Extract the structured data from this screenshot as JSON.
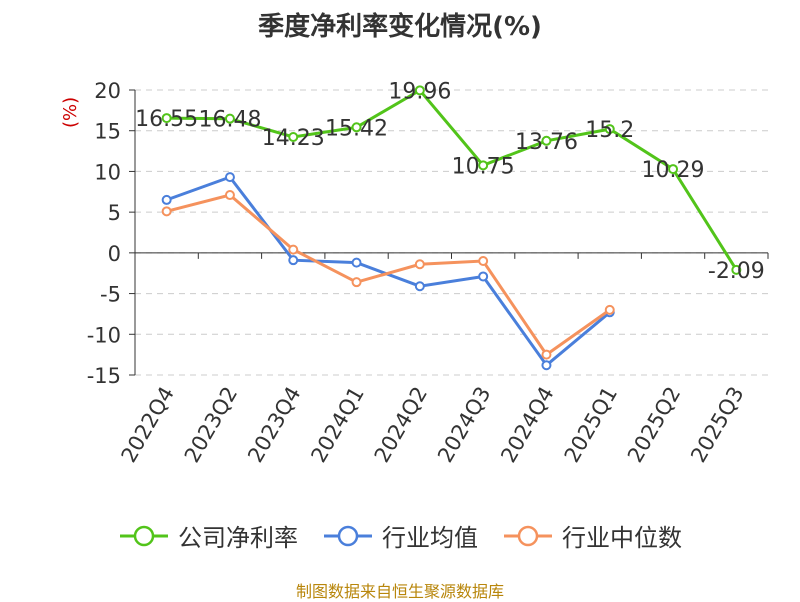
{
  "chart_data": {
    "type": "line",
    "title": "季度净利率变化情况(%)",
    "unit_label": "(%)",
    "categories": [
      "2022Q4",
      "2023Q2",
      "2023Q4",
      "2024Q1",
      "2024Q2",
      "2024Q3",
      "2024Q4",
      "2025Q1",
      "2025Q2",
      "2025Q3"
    ],
    "ylim": [
      -15,
      20
    ],
    "yticks": [
      20,
      15,
      10,
      5,
      0,
      -5,
      -10,
      -15
    ],
    "grid": true,
    "legend_position": "bottom",
    "series": [
      {
        "name": "公司净利率",
        "color": "#52c41a",
        "values": [
          16.55,
          16.48,
          14.23,
          15.42,
          19.96,
          10.75,
          13.76,
          15.2,
          10.29,
          -2.09
        ],
        "labels": true
      },
      {
        "name": "行业均值",
        "color": "#4a7fdb",
        "values": [
          6.5,
          9.3,
          -0.9,
          -1.2,
          -4.1,
          -2.9,
          -13.8,
          -7.3,
          null,
          null
        ],
        "labels": false
      },
      {
        "name": "行业中位数",
        "color": "#f5925d",
        "values": [
          5.1,
          7.1,
          0.4,
          -3.6,
          -1.4,
          -1.0,
          -12.5,
          -7.0,
          null,
          null
        ],
        "labels": false
      }
    ]
  },
  "source_text": "制图数据来自恒生聚源数据库"
}
